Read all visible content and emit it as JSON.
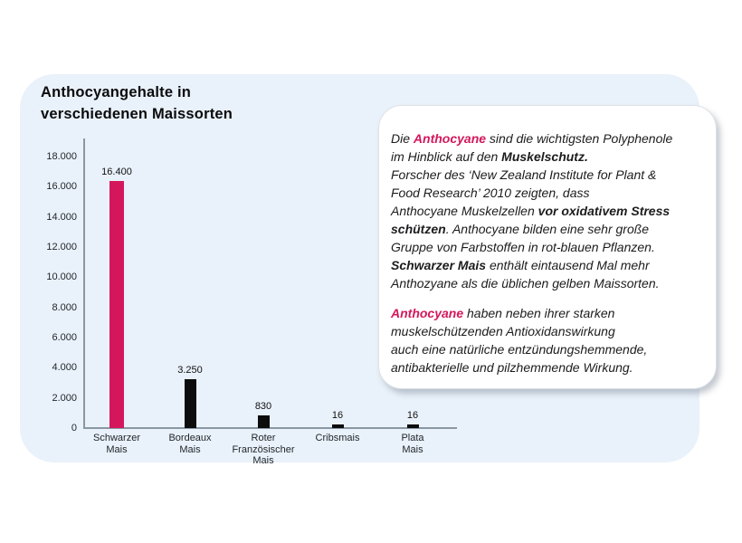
{
  "colors": {
    "accent_pink": "#D4175C",
    "panel_blue": "#E9F1FA",
    "axis_gray": "#8A97A3",
    "bar_black": "#0C0C0C"
  },
  "panel": {
    "title": "Anthocyangehalte in\nverschiedenen Maissorten"
  },
  "chart_data": {
    "type": "bar",
    "title": "Anthocyangehalte in verschiedenen Maissorten",
    "categories": [
      "Schwarzer\nMais",
      "Bordeaux\nMais",
      "Roter\nFranzösischer\nMais",
      "Cribsmais",
      "Plata\nMais"
    ],
    "values": [
      16400,
      3250,
      830,
      16,
      16
    ],
    "value_labels": [
      "16.400",
      "3.250",
      "830",
      "16",
      "16"
    ],
    "bar_colors": [
      "#D4175C",
      "#0C0C0C",
      "#0C0C0C",
      "#0C0C0C",
      "#0C0C0C"
    ],
    "y_ticks": [
      0,
      2000,
      4000,
      6000,
      8000,
      10000,
      12000,
      14000,
      16000,
      18000
    ],
    "y_tick_labels": [
      "0",
      "2.000",
      "4.000",
      "6.000",
      "8.000",
      "10.000",
      "12.000",
      "14.000",
      "16.000",
      "18.000"
    ],
    "ylim": [
      0,
      18000
    ],
    "xlabel": "",
    "ylabel": "",
    "grid": false,
    "legend": false
  },
  "infobox": {
    "p1": [
      {
        "t": "Die "
      },
      {
        "t": "Anthocyane"
      },
      {
        "t": " sind die wichtigsten Polyphenole\nim Hinblick auf den "
      },
      {
        "t": "Muskelschutz."
      },
      {
        "t": "\nForscher des ‘New Zealand Institute for Plant &\nFood Research’ 2010 zeigten, dass\nAnthocyane Muskelzellen "
      },
      {
        "t": "vor oxidativem Stress\nschützen"
      },
      {
        "t": ".  Anthocyane bilden eine sehr große\nGruppe von Farbstoffen in rot-blauen Pflanzen.\n"
      },
      {
        "t": "Schwarzer Mais"
      },
      {
        "t": "  enthält eintausend Mal mehr\nAnthozyane als die üblichen gelben Maissorten."
      }
    ],
    "p2": [
      {
        "t": "Anthocyane"
      },
      {
        "t": " haben neben ihrer starken\nmuskelschützenden Antioxidanswirkung\nauch eine natürliche entzündungshemmende,\nantibakterielle und pilzhemmende Wirkung."
      }
    ]
  }
}
